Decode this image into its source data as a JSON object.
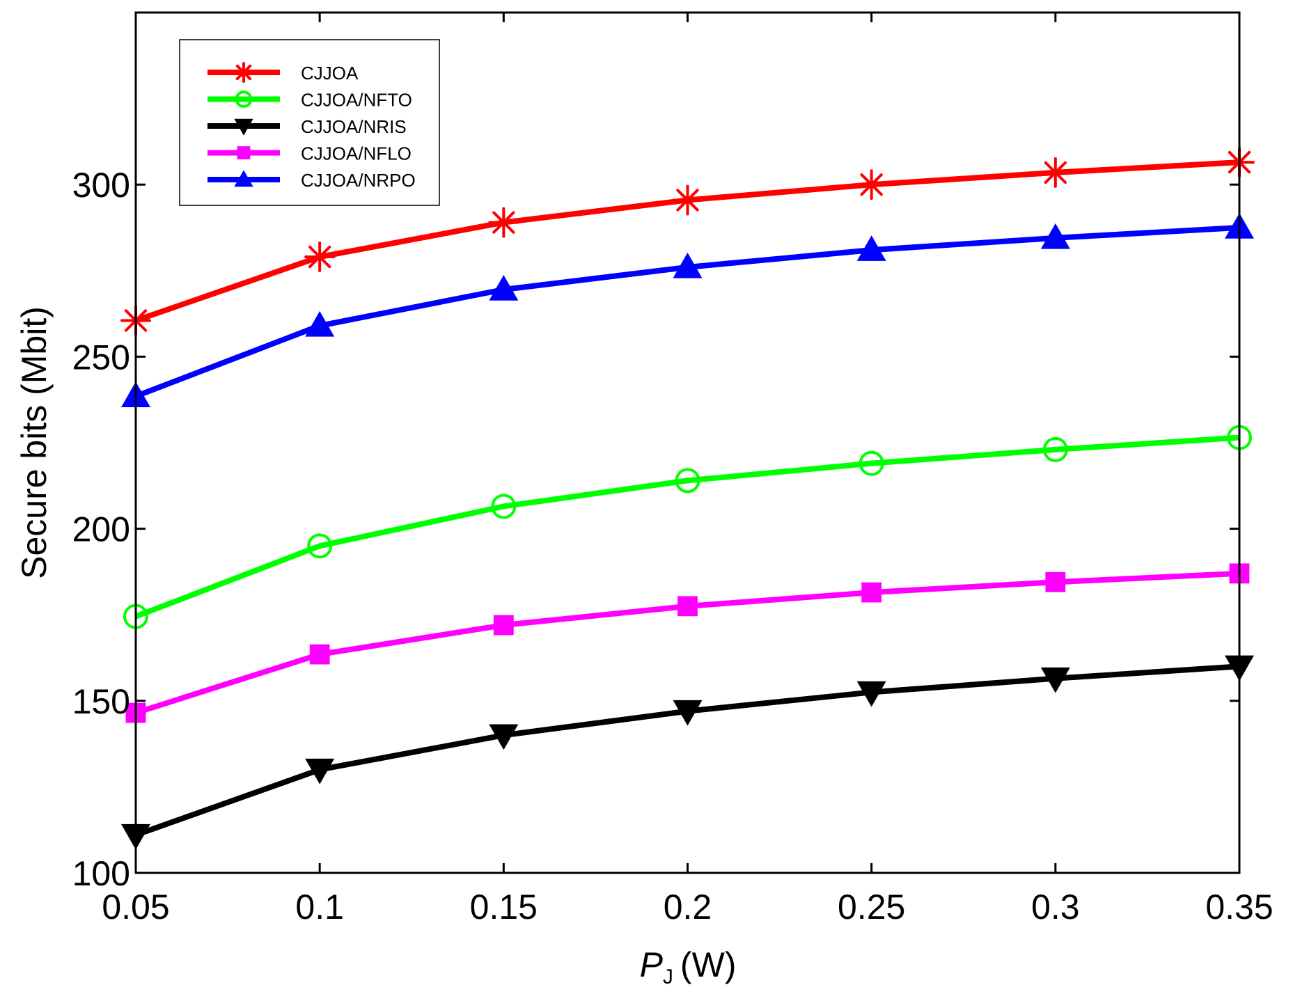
{
  "chart_data": {
    "type": "line",
    "title": "",
    "xlabel": "(W)",
    "xlabel_symbol": "P",
    "xlabel_subscript": "J",
    "ylabel": "Secure bits (Mbit)",
    "x": [
      0.05,
      0.1,
      0.15,
      0.2,
      0.25,
      0.3,
      0.35
    ],
    "xlim": [
      0.05,
      0.35
    ],
    "ylim": [
      100,
      350
    ],
    "xticks": [
      0.05,
      0.1,
      0.15,
      0.2,
      0.25,
      0.3,
      0.35
    ],
    "xtick_labels": [
      "0.05",
      "0.1",
      "0.15",
      "0.2",
      "0.25",
      "0.3",
      "0.35"
    ],
    "yticks": [
      100,
      150,
      200,
      250,
      300
    ],
    "ytick_labels": [
      "100",
      "150",
      "200",
      "250",
      "300"
    ],
    "grid": false,
    "legend_position": "top-left",
    "series": [
      {
        "name": "CJJOA",
        "color": "#ff0000",
        "marker": "asterisk",
        "values": [
          260.5,
          279,
          289,
          295.5,
          300,
          303.5,
          306.5
        ]
      },
      {
        "name": "CJJOA/NFTO",
        "color": "#00ff00",
        "marker": "circle",
        "values": [
          174.5,
          195,
          206.5,
          214,
          219,
          223,
          226.5
        ]
      },
      {
        "name": "CJJOA/NRIS",
        "color": "#000000",
        "marker": "triangle-down",
        "values": [
          111,
          130,
          140,
          147,
          152.5,
          156.5,
          160
        ]
      },
      {
        "name": "CJJOA/NFLO",
        "color": "#ff00ff",
        "marker": "square",
        "values": [
          146.5,
          163.5,
          172,
          177.5,
          181.5,
          184.5,
          187
        ]
      },
      {
        "name": "CJJOA/NRPO",
        "color": "#0000ff",
        "marker": "triangle-up",
        "values": [
          238.5,
          259,
          269.5,
          276,
          281,
          284.5,
          287.5
        ]
      }
    ]
  }
}
